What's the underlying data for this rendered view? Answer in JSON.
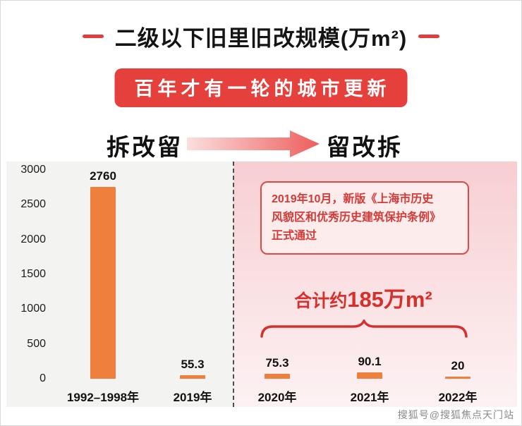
{
  "header": {
    "title": "二级以下旧里旧改规模(万m²)",
    "banner": "百年才有一轮的城市更新"
  },
  "phases": {
    "left": "拆改留",
    "right": "留改拆"
  },
  "annotation": {
    "text": "2019年10月，新版《上海市历史\n风貌区和优秀历史建筑保护条例》\n正式通过"
  },
  "total": {
    "prefix": "合计约",
    "value": "185万m²"
  },
  "watermark": "搜狐号@搜狐焦点天门站",
  "colors": {
    "bar_orange": "#ef7f3d",
    "accent_red": "#d5302c",
    "banner_red": "#e5403c"
  },
  "chart_data": {
    "type": "bar",
    "title": "二级以下旧里旧改规模(万m²)",
    "categories": [
      "1992–1998年",
      "2019年",
      "2020年",
      "2021年",
      "2022年"
    ],
    "values": [
      2760,
      55.3,
      75.3,
      90.1,
      20
    ],
    "value_labels": [
      "2760",
      "55.3",
      "75.3",
      "90.1",
      "20"
    ],
    "yticks": [
      0,
      500,
      1000,
      1500,
      2000,
      2500,
      3000
    ],
    "ylim": [
      0,
      3000
    ],
    "xlabel": "",
    "ylabel": "",
    "grid": false,
    "legend": "none",
    "bar_color": "#ef7f3d",
    "divider_note": "dashed vertical line separates 2019年 (拆改留 era) from 2020年 onward (留改拆 era)",
    "annotations": [
      "拆改留 → 留改拆",
      "2019年10月，新版《上海市历史风貌区和优秀历史建筑保护条例》正式通过",
      "合计约185万m² (brace over 2020年–2022年 bars)"
    ]
  }
}
